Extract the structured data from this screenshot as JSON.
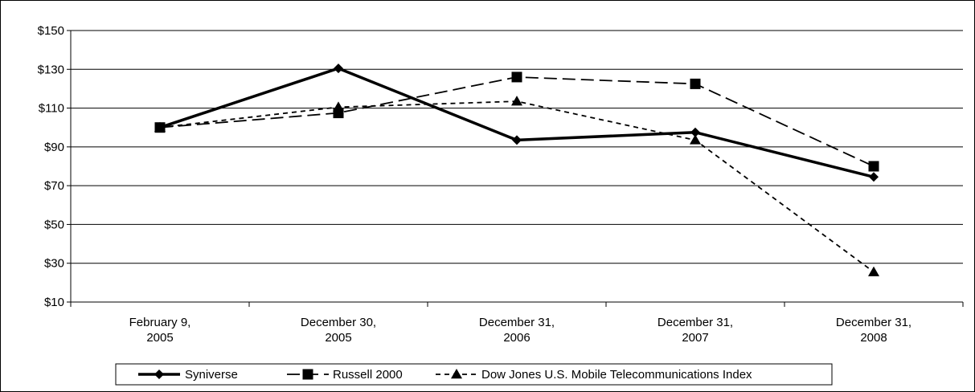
{
  "chart_data": {
    "type": "line",
    "title": "",
    "xlabel": "",
    "ylabel": "",
    "categories": [
      [
        "February 9,",
        "2005"
      ],
      [
        "December 30,",
        "2005"
      ],
      [
        "December 31,",
        "2006"
      ],
      [
        "December 31,",
        "2007"
      ],
      [
        "December 31,",
        "2008"
      ]
    ],
    "ylim": [
      10,
      150
    ],
    "yticks": [
      10,
      30,
      50,
      70,
      90,
      110,
      130,
      150
    ],
    "ytick_labels": [
      "$10",
      "$30",
      "$50",
      "$70",
      "$90",
      "$110",
      "$130",
      "$150"
    ],
    "grid": true,
    "legend_position": "bottom",
    "series": [
      {
        "name": "Syniverse",
        "values": [
          100,
          130.5,
          93.5,
          97.5,
          74.5
        ],
        "marker": "diamond",
        "line_style": "solid",
        "color": "#000000"
      },
      {
        "name": "Russell 2000",
        "values": [
          100,
          107.5,
          126,
          122.5,
          80
        ],
        "marker": "square",
        "line_style": "long-dash",
        "color": "#000000"
      },
      {
        "name": "Dow Jones U.S. Mobile Telecommunications Index",
        "values": [
          100,
          110.5,
          113.5,
          93.5,
          25.5
        ],
        "marker": "triangle",
        "line_style": "short-dash",
        "color": "#000000"
      }
    ]
  }
}
